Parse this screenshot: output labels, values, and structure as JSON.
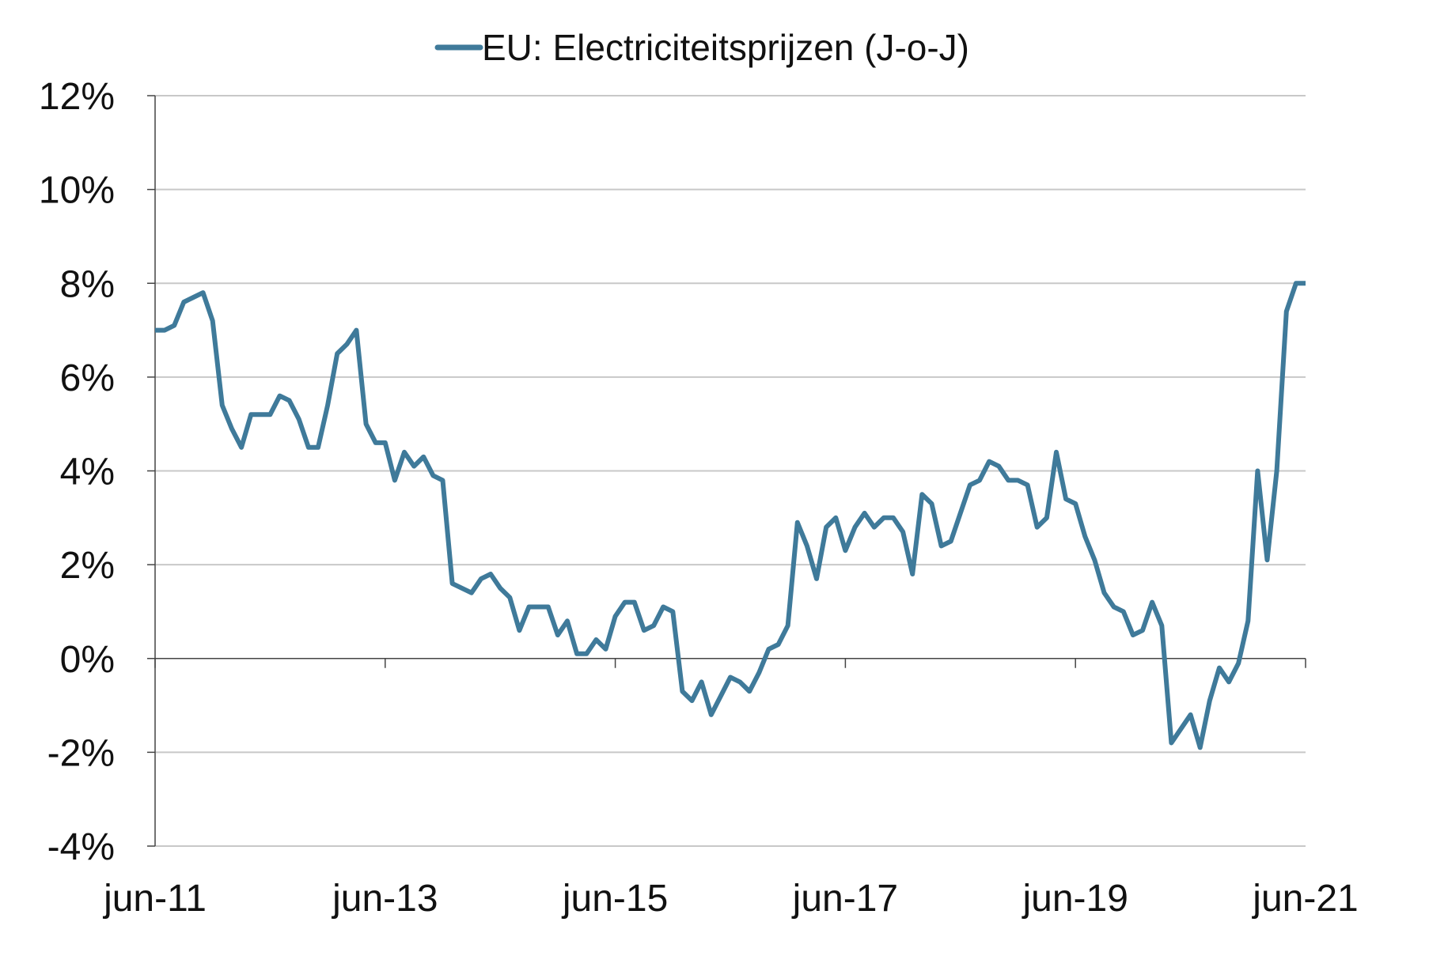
{
  "chart_data": {
    "type": "line",
    "title": "",
    "xlabel": "",
    "ylabel": "",
    "x_tick_labels": [
      "jun-11",
      "jun-13",
      "jun-15",
      "jun-17",
      "jun-19",
      "jun-21"
    ],
    "y_tick_labels": [
      "12%",
      "10%",
      "8%",
      "6%",
      "4%",
      "2%",
      "0%",
      "-2%",
      "-4%"
    ],
    "y_ticks": [
      12,
      10,
      8,
      6,
      4,
      2,
      0,
      -2,
      -4
    ],
    "ylim": [
      -4,
      12
    ],
    "x_range": [
      "2011-06",
      "2021-06"
    ],
    "grid": true,
    "legend_position": "top-center",
    "series": [
      {
        "name": "EU: Electriciteitsprijzen (J-o-J)",
        "color": "#3F7A9A",
        "x": [
          "2011-06",
          "2011-07",
          "2011-08",
          "2011-09",
          "2011-10",
          "2011-11",
          "2011-12",
          "2012-01",
          "2012-02",
          "2012-03",
          "2012-04",
          "2012-05",
          "2012-06",
          "2012-07",
          "2012-08",
          "2012-09",
          "2012-10",
          "2012-11",
          "2012-12",
          "2013-01",
          "2013-02",
          "2013-03",
          "2013-04",
          "2013-05",
          "2013-06",
          "2013-07",
          "2013-08",
          "2013-09",
          "2013-10",
          "2013-11",
          "2013-12",
          "2014-01",
          "2014-02",
          "2014-03",
          "2014-04",
          "2014-05",
          "2014-06",
          "2014-07",
          "2014-08",
          "2014-09",
          "2014-10",
          "2014-11",
          "2014-12",
          "2015-01",
          "2015-02",
          "2015-03",
          "2015-04",
          "2015-05",
          "2015-06",
          "2015-07",
          "2015-08",
          "2015-09",
          "2015-10",
          "2015-11",
          "2015-12",
          "2016-01",
          "2016-02",
          "2016-03",
          "2016-04",
          "2016-05",
          "2016-06",
          "2016-07",
          "2016-08",
          "2016-09",
          "2016-10",
          "2016-11",
          "2016-12",
          "2017-01",
          "2017-02",
          "2017-03",
          "2017-04",
          "2017-05",
          "2017-06",
          "2017-07",
          "2017-08",
          "2017-09",
          "2017-10",
          "2017-11",
          "2017-12",
          "2018-01",
          "2018-02",
          "2018-03",
          "2018-04",
          "2018-05",
          "2018-06",
          "2018-07",
          "2018-08",
          "2018-09",
          "2018-10",
          "2018-11",
          "2018-12",
          "2019-01",
          "2019-02",
          "2019-03",
          "2019-04",
          "2019-05",
          "2019-06",
          "2019-07",
          "2019-08",
          "2019-09",
          "2019-10",
          "2019-11",
          "2019-12",
          "2020-01",
          "2020-02",
          "2020-03",
          "2020-04",
          "2020-05",
          "2020-06",
          "2020-07",
          "2020-08",
          "2020-09",
          "2020-10",
          "2020-11",
          "2020-12",
          "2021-01",
          "2021-02",
          "2021-03",
          "2021-04",
          "2021-05",
          "2021-06"
        ],
        "values": [
          7.0,
          7.0,
          7.1,
          7.6,
          7.7,
          7.8,
          7.2,
          5.4,
          4.9,
          4.5,
          5.2,
          5.2,
          5.2,
          5.6,
          5.5,
          5.1,
          4.5,
          4.5,
          5.4,
          6.5,
          6.7,
          7.0,
          5.0,
          4.6,
          4.6,
          3.8,
          4.4,
          4.1,
          4.3,
          3.9,
          3.8,
          1.6,
          1.5,
          1.4,
          1.7,
          1.8,
          1.5,
          1.3,
          0.6,
          1.1,
          1.1,
          1.1,
          0.5,
          0.8,
          0.1,
          0.1,
          0.4,
          0.2,
          0.9,
          1.2,
          1.2,
          0.6,
          0.7,
          1.1,
          1.0,
          -0.7,
          -0.9,
          -0.5,
          -1.2,
          -0.8,
          -0.4,
          -0.5,
          -0.7,
          -0.3,
          0.2,
          0.3,
          0.7,
          2.9,
          2.4,
          1.7,
          2.8,
          3.0,
          2.3,
          2.8,
          3.1,
          2.8,
          3.0,
          3.0,
          2.7,
          1.8,
          3.5,
          3.3,
          2.4,
          2.5,
          3.1,
          3.7,
          3.8,
          4.2,
          4.1,
          3.8,
          3.8,
          3.7,
          2.8,
          3.0,
          4.4,
          3.4,
          3.3,
          2.6,
          2.1,
          1.4,
          1.1,
          1.0,
          0.5,
          0.6,
          1.2,
          0.7,
          -1.8,
          -1.5,
          -1.2,
          -1.9,
          -0.9,
          -0.2,
          -0.5,
          -0.1,
          0.8,
          4.0,
          2.1,
          4.0,
          7.4,
          8.0,
          8.0
        ]
      }
    ]
  }
}
